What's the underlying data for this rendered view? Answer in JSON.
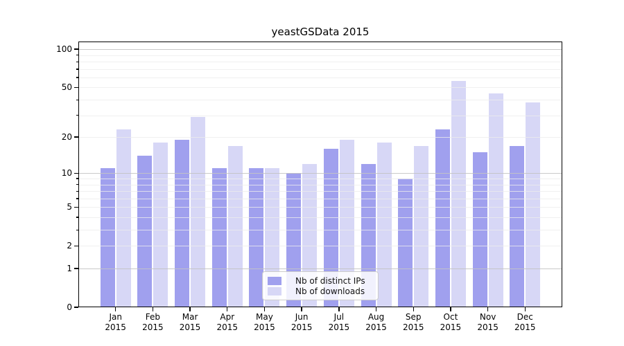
{
  "title": "yeastGSData 2015",
  "chart_data": {
    "type": "bar",
    "title": "yeastGSData 2015",
    "categories": [
      "Jan",
      "Feb",
      "Mar",
      "Apr",
      "May",
      "Jun",
      "Jul",
      "Aug",
      "Sep",
      "Oct",
      "Nov",
      "Dec"
    ],
    "x_year_label": "2015",
    "series": [
      {
        "name": "Nb of distinct IPs",
        "color": "#a0a0ee",
        "values": [
          11,
          14,
          19,
          11,
          11,
          10,
          16,
          12,
          9,
          23,
          15,
          17
        ]
      },
      {
        "name": "Nb of downloads",
        "color": "#d7d7f6",
        "values": [
          23,
          18,
          29,
          17,
          11,
          12,
          19,
          18,
          17,
          56,
          45,
          38
        ]
      }
    ],
    "xlabel": "",
    "ylabel": "",
    "yscale": "log1p",
    "ylim": [
      0,
      115
    ],
    "ytick_labels": [
      0,
      1,
      2,
      5,
      10,
      20,
      50,
      100
    ],
    "ygrid_major": [
      1,
      10,
      100
    ],
    "ygrid_minor": [
      2,
      3,
      4,
      5,
      6,
      7,
      8,
      9,
      20,
      30,
      40,
      50,
      60,
      70,
      80,
      90
    ],
    "grid": true,
    "legend_position": "bottom-center",
    "colors": {
      "grid_major": "#c3c3c3",
      "grid_minor": "#ececec",
      "axis": "#000000",
      "background": "#ffffff"
    }
  }
}
